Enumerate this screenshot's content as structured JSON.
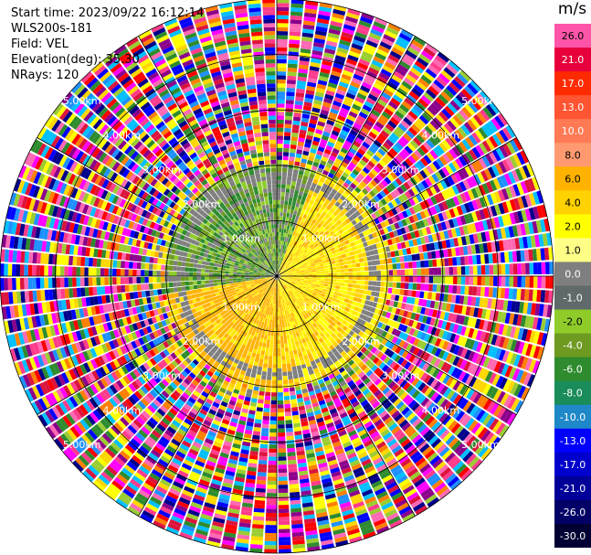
{
  "header": {
    "start_time": "Start time: 2023/09/22 16:12:14",
    "instrument": "WLS200s-181",
    "field": "Field: VEL",
    "elevation": "Elevation(deg): 35.30",
    "nrays": "NRays: 120"
  },
  "colorbar": {
    "unit": "m/s",
    "labels": [
      "26.0",
      "21.0",
      "17.0",
      "13.0",
      "10.0",
      "8.0",
      "6.0",
      "4.0",
      "2.0",
      "1.0",
      "0.0",
      "-1.0",
      "-2.0",
      "-4.0",
      "-6.0",
      "-8.0",
      "-10.0",
      "-13.0",
      "-17.0",
      "-21.0",
      "-26.0",
      "-30.0"
    ],
    "colors": [
      "#ff55a8",
      "#e8003c",
      "#ff2a00",
      "#ff5533",
      "#ff7a55",
      "#ff9a70",
      "#ffb300",
      "#ffd200",
      "#ffff00",
      "#ffff88",
      "#7f7f7f",
      "#606a6a",
      "#8fcc2a",
      "#6e9a22",
      "#2e8b2e",
      "#1a8c5a",
      "#1e88c8",
      "#0000ff",
      "#0000cc",
      "#000099",
      "#000066",
      "#000033"
    ]
  },
  "range_labels": [
    "1.00km",
    "2.00km",
    "3.00km",
    "4.00km",
    "5.00km"
  ],
  "ppi": {
    "outer_palette": [
      "#ff3c8c",
      "#ff00ff",
      "#0000ff",
      "#ffff00",
      "#ff0000",
      "#00008b",
      "#2e8b2e",
      "#ff7f00",
      "#8b008b",
      "#1e90ff",
      "#ffd700",
      "#ff69b4",
      "#00bfff",
      "#9acd32",
      "#dc143c"
    ],
    "inner_palette": [
      "#ffff00",
      "#ffe600",
      "#ffd200",
      "#ffb300",
      "#2e8b2e",
      "#6e9a22",
      "#8fcc2a",
      "#7f7f7f"
    ]
  }
}
